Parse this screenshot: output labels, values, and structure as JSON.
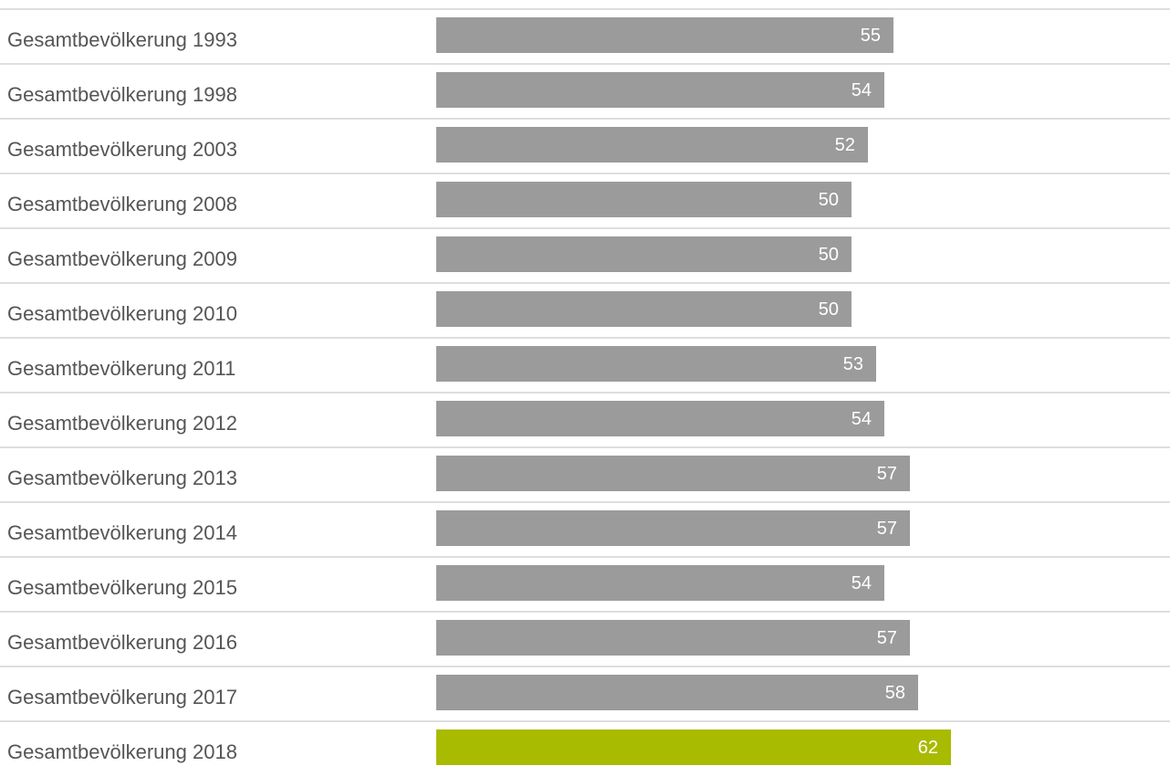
{
  "chart_data": {
    "type": "bar",
    "orientation": "horizontal",
    "categories": [
      "Gesamtbevölkerung 1993",
      "Gesamtbevölkerung 1998",
      "Gesamtbevölkerung 2003",
      "Gesamtbevölkerung 2008",
      "Gesamtbevölkerung 2009",
      "Gesamtbevölkerung 2010",
      "Gesamtbevölkerung 2011",
      "Gesamtbevölkerung 2012",
      "Gesamtbevölkerung 2013",
      "Gesamtbevölkerung 2014",
      "Gesamtbevölkerung 2015",
      "Gesamtbevölkerung 2016",
      "Gesamtbevölkerung 2017",
      "Gesamtbevölkerung 2018"
    ],
    "values": [
      55,
      54,
      52,
      50,
      50,
      50,
      53,
      54,
      57,
      57,
      54,
      57,
      58,
      62
    ],
    "value_labels": [
      "55",
      "54",
      "52",
      "50",
      "50",
      "50",
      "53",
      "54",
      "57",
      "57",
      "54",
      "57",
      "58",
      "62"
    ],
    "highlight_index": 13,
    "colors": {
      "bar": "#9b9b9b",
      "highlight": "#a9bb00",
      "label_text": "#555555",
      "value_text": "#ffffff",
      "gridline": "#dedede"
    },
    "title": "",
    "xlabel": "",
    "ylabel": "",
    "grid": true,
    "legend": "none"
  }
}
